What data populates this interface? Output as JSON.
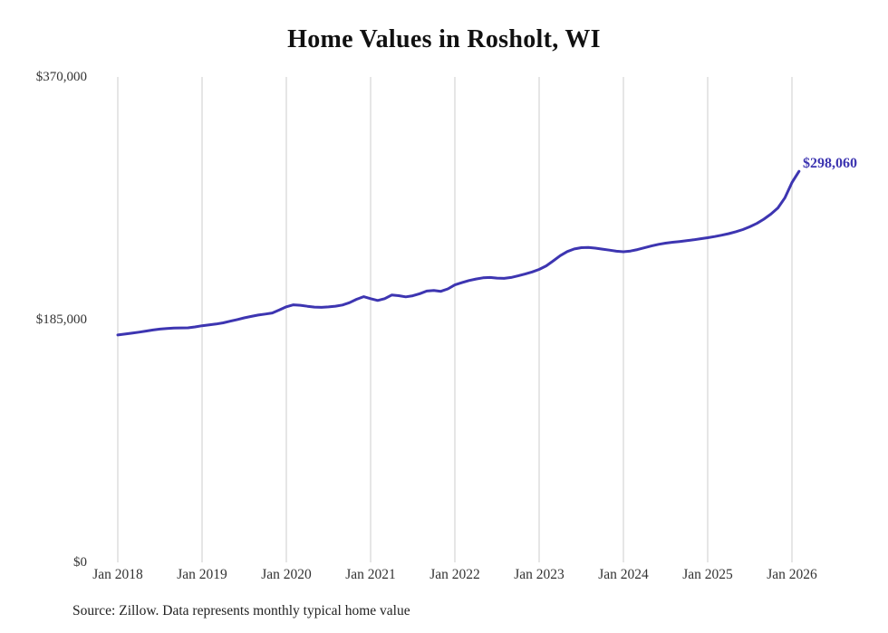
{
  "title": "Home Values in Rosholt, WI",
  "source_note": "Source: Zillow. Data represents monthly typical home value",
  "end_label": "$298,060",
  "colors": {
    "line": "#3d35b1",
    "end_label": "#3d35b1",
    "grid": "#cccccc",
    "axis_text": "#333333",
    "title_text": "#111111",
    "background": "#ffffff"
  },
  "chart_data": {
    "type": "line",
    "title": "Home Values in Rosholt, WI",
    "xlabel": "",
    "ylabel": "",
    "ylim": [
      0,
      370000
    ],
    "grid": "vertical-only",
    "legend": "none",
    "y_ticks": [
      {
        "value": 370000,
        "label": "$370,000"
      },
      {
        "value": 185000,
        "label": "$185,000"
      },
      {
        "value": 0,
        "label": "$0"
      }
    ],
    "x_ticks": [
      "Jan 2018",
      "Jan 2019",
      "Jan 2020",
      "Jan 2021",
      "Jan 2022",
      "Jan 2023",
      "Jan 2024",
      "Jan 2025",
      "Jan 2026"
    ],
    "series": [
      {
        "name": "Monthly typical home value",
        "x_start": "2018-01",
        "x_interval": "month",
        "final_value": 298060,
        "final_value_label": "$298,060",
        "values": [
          173300,
          174000,
          174700,
          175500,
          176300,
          177100,
          177800,
          178300,
          178600,
          178700,
          178800,
          179500,
          180400,
          181000,
          181700,
          182600,
          183800,
          185100,
          186400,
          187500,
          188500,
          189300,
          190100,
          192400,
          194800,
          196300,
          196000,
          195200,
          194600,
          194400,
          194700,
          195300,
          196200,
          198000,
          200500,
          202500,
          201000,
          199600,
          201000,
          203800,
          203300,
          202400,
          203200,
          204800,
          206800,
          207300,
          206600,
          208500,
          211500,
          213200,
          214800,
          216000,
          216900,
          217200,
          216700,
          216500,
          217200,
          218400,
          219800,
          221400,
          223300,
          226000,
          229800,
          233800,
          236900,
          238900,
          239900,
          240000,
          239500,
          238800,
          238000,
          237200,
          236800,
          237300,
          238400,
          239800,
          241200,
          242400,
          243300,
          244000,
          244600,
          245200,
          245900,
          246700,
          247500,
          248400,
          249400,
          250600,
          252000,
          253700,
          255800,
          258400,
          261600,
          265500,
          270200,
          278000,
          289500,
          298060
        ]
      }
    ]
  }
}
